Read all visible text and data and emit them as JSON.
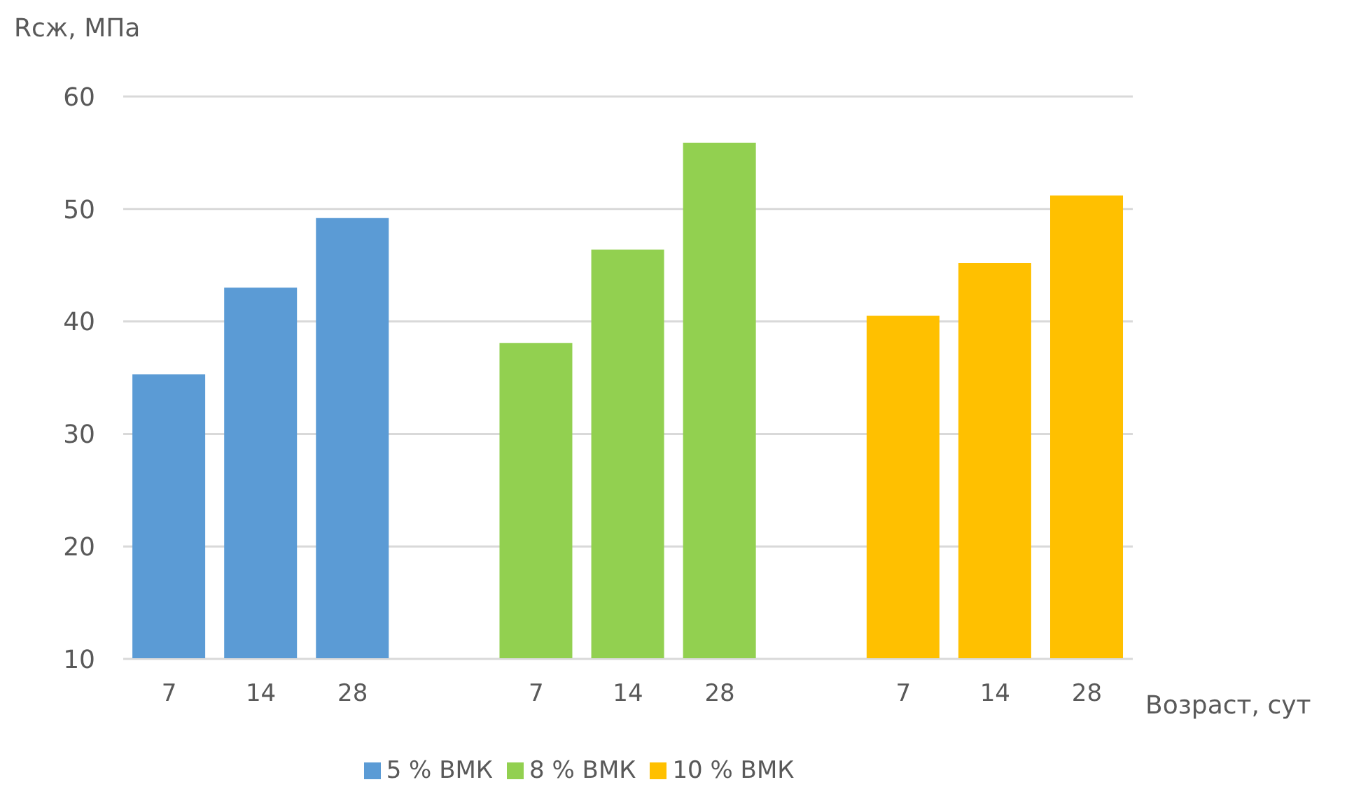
{
  "chart_data": {
    "type": "bar",
    "stacked": true,
    "ylabel": "Rсж, МПа",
    "xlabel": "Возраст, сут",
    "categories": [
      "7",
      "14",
      "28",
      null,
      "7",
      "14",
      "28",
      null,
      "7",
      "14",
      "28"
    ],
    "series": [
      {
        "name": "5 % ВМК",
        "color": "#5b9bd5",
        "values": [
          35.3,
          43.0,
          49.2,
          null,
          null,
          null,
          null,
          null,
          null,
          null,
          null
        ]
      },
      {
        "name": "8 % ВМК",
        "color": "#92d050",
        "values": [
          null,
          null,
          null,
          null,
          38.1,
          46.4,
          55.9,
          null,
          null,
          null,
          null
        ]
      },
      {
        "name": "10 % ВМК",
        "color": "#ffc000",
        "values": [
          null,
          null,
          null,
          null,
          null,
          null,
          null,
          null,
          40.5,
          45.2,
          51.2
        ]
      }
    ],
    "ylim": [
      10,
      60
    ],
    "yticks": [
      10,
      20,
      30,
      40,
      50,
      60
    ],
    "grid": "y",
    "legend": "bottom"
  }
}
